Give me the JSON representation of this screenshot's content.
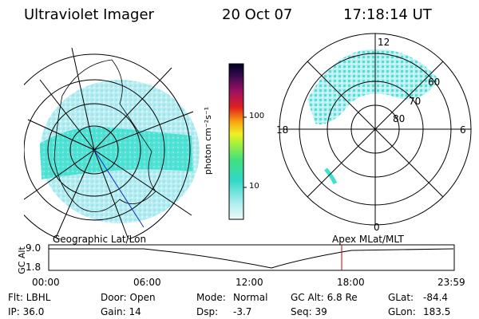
{
  "header": {
    "title": "Ultraviolet Imager",
    "date": "20 Oct 07",
    "time": "17:18:14 UT"
  },
  "colorbar": {
    "label": "photon cm⁻²s⁻¹",
    "ticks": [
      "100",
      "10"
    ]
  },
  "polar_plot": {
    "mlt_labels": [
      "12",
      "18",
      "6",
      "0"
    ],
    "lat_labels": [
      "60",
      "70",
      "80"
    ]
  },
  "timeline": {
    "geo_label": "Geographic Lat/Lon",
    "apex_label": "Apex MLat/MLT",
    "axis_label": "GC Alt",
    "y_top": "9.0",
    "y_bottom": "1.8",
    "x_ticks": [
      "00:00",
      "06:00",
      "12:00",
      "18:00",
      "23:59"
    ]
  },
  "info": {
    "row1": {
      "flt": "Flt: LBHL",
      "door": "Door: Open",
      "mode_label": "Mode:",
      "mode_value": "Normal",
      "gcalt": "GC Alt: 6.8 Re",
      "glat_label": "GLat:",
      "glat_value": "-84.4"
    },
    "row2": {
      "ip": "IP: 36.0",
      "gain": "Gain: 14",
      "dsp_label": "Dsp:",
      "dsp_value": "-3.7",
      "seq": "Seq: 39",
      "glon_label": "GLon:",
      "glon_value": "183.5"
    }
  },
  "colors": {
    "aurora_main": "#28e0c8",
    "aurora_light": "#a8ecf0",
    "grid": "#000000",
    "marker": "#c00000"
  }
}
